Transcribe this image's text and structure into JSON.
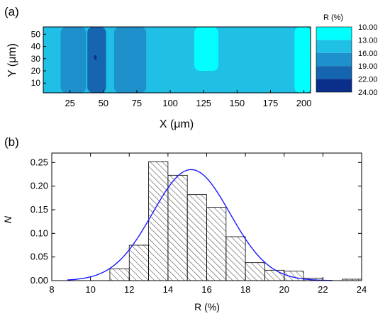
{
  "figure": {
    "panel_a_label": "(a)",
    "panel_b_label": "(b)"
  },
  "chart_data": [
    {
      "type": "heatmap",
      "panel": "(a)",
      "xlabel": "X (μm)",
      "ylabel": "Y (μm)",
      "xlim": [
        5,
        205
      ],
      "ylim": [
        2,
        56
      ],
      "xticks": [
        25,
        50,
        75,
        100,
        125,
        150,
        175,
        200
      ],
      "yticks": [
        10,
        20,
        30,
        40,
        50
      ],
      "colorbar": {
        "title": "R (%)",
        "levels": [
          "10.00",
          "13.00",
          "16.00",
          "19.00",
          "22.00",
          "24.00"
        ],
        "colors": [
          "#00ffff",
          "#1fbfe6",
          "#1e90cc",
          "#1565b0",
          "#0a2f8a"
        ]
      },
      "field": {
        "background_level": "13.00-16.00",
        "regions": [
          {
            "level": "16.00-19.00",
            "x": [
              18,
              37
            ],
            "y": [
              2,
              56
            ]
          },
          {
            "level": "16.00-19.00",
            "x": [
              58,
              82
            ],
            "y": [
              2,
              56
            ]
          },
          {
            "level": "19.00-22.00",
            "x": [
              38,
              52
            ],
            "y": [
              2,
              56
            ]
          },
          {
            "level": "22.00-24.00",
            "x": [
              43,
              45
            ],
            "y": [
              29,
              33
            ]
          },
          {
            "level": "10.00-13.00",
            "x": [
              118,
              136
            ],
            "y": [
              20,
              56
            ]
          },
          {
            "level": "10.00-13.00",
            "x": [
              193,
              205
            ],
            "y": [
              2,
              56
            ]
          }
        ]
      }
    },
    {
      "type": "bar",
      "panel": "(b)",
      "xlabel": "R (%)",
      "ylabel": "N",
      "xlim": [
        8,
        24
      ],
      "ylim": [
        0,
        0.27
      ],
      "xticks": [
        8,
        10,
        12,
        14,
        16,
        18,
        20,
        22,
        24
      ],
      "yticks": [
        "0.00",
        "0.05",
        "0.10",
        "0.15",
        "0.20",
        "0.25"
      ],
      "bins": [
        {
          "x0": 11,
          "x1": 12,
          "value": 0.025
        },
        {
          "x0": 12,
          "x1": 13,
          "value": 0.075
        },
        {
          "x0": 13,
          "x1": 14,
          "value": 0.252
        },
        {
          "x0": 14,
          "x1": 15,
          "value": 0.223
        },
        {
          "x0": 15,
          "x1": 16,
          "value": 0.182
        },
        {
          "x0": 16,
          "x1": 17,
          "value": 0.155
        },
        {
          "x0": 17,
          "x1": 18,
          "value": 0.093
        },
        {
          "x0": 18,
          "x1": 19,
          "value": 0.038
        },
        {
          "x0": 19,
          "x1": 20,
          "value": 0.022
        },
        {
          "x0": 20,
          "x1": 21,
          "value": 0.02
        },
        {
          "x0": 21,
          "x1": 22,
          "value": 0.005
        },
        {
          "x0": 23,
          "x1": 24,
          "value": 0.003
        }
      ],
      "fit": {
        "type": "gaussian",
        "mean": 15.2,
        "sigma": 2.0,
        "peak": 0.235,
        "x_range": [
          8.8,
          22.5
        ],
        "color": "#1a1aff"
      },
      "bar_fill": "hatched"
    }
  ]
}
